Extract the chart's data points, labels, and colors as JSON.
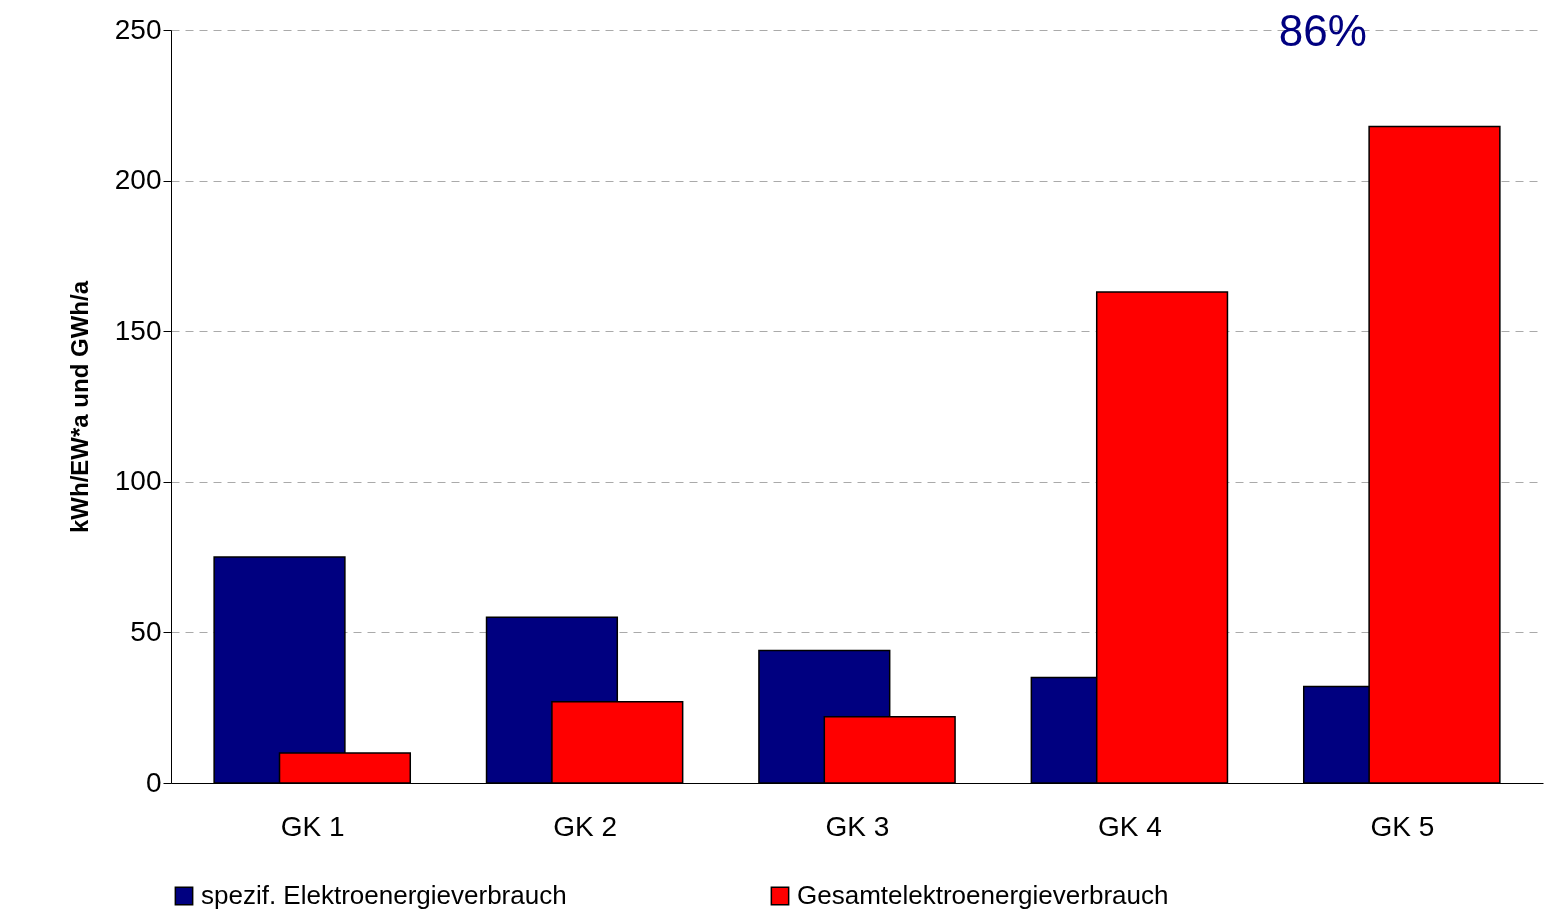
{
  "chart_data": {
    "type": "bar",
    "ylabel": "kWh/EW*a und GWh/a",
    "categories": [
      "GK 1",
      "GK 2",
      "GK 3",
      "GK 4",
      "GK 5"
    ],
    "series": [
      {
        "name": "spezif. Elektroenergieverbrauch",
        "color": "#000080",
        "values": [
          75,
          55,
          44,
          35,
          32
        ]
      },
      {
        "name": "Gesamtelektroenergieverbrauch",
        "color": "#ff0000",
        "values": [
          10,
          27,
          22,
          163,
          218
        ]
      }
    ],
    "ylim": [
      0,
      250
    ],
    "yticks": [
      0,
      50,
      100,
      150,
      200,
      250
    ],
    "grid": "y",
    "legend": "bottom",
    "annotations": [
      "86%"
    ]
  }
}
